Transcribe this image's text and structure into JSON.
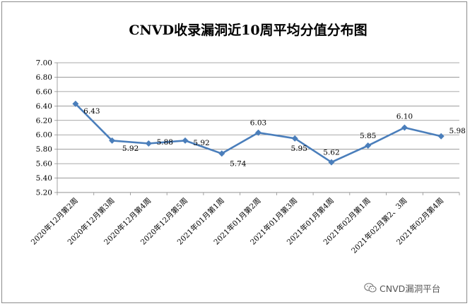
{
  "chart_data": {
    "type": "line",
    "title": "CNVD收录漏洞近10周平均分值分布图",
    "categories": [
      "2020年12月第2周",
      "2020年12月第3周",
      "2020年12月第4周",
      "2020年12月第5周",
      "2021年01月第1周",
      "2021年01月第2周",
      "2021年01月第3周",
      "2021年01月第4周",
      "2021年02月第1周",
      "2021年02月第2、3周",
      "2021年02月第4周"
    ],
    "series": [
      {
        "values": [
          6.43,
          5.92,
          5.88,
          5.92,
          5.74,
          6.03,
          5.95,
          5.62,
          5.85,
          6.1,
          5.98
        ]
      }
    ],
    "data_labels": [
      "6.43",
      "5.92",
      "5.88",
      "5.92",
      "5.74",
      "6.03",
      "5.95",
      "5.62",
      "5.85",
      "6.10",
      "5.98"
    ],
    "ylim": [
      5.2,
      7.0
    ],
    "yticks": [
      "5.20",
      "5.40",
      "5.60",
      "5.80",
      "6.00",
      "6.20",
      "6.40",
      "6.60",
      "6.80",
      "7.00"
    ],
    "grid": true,
    "legend": "none",
    "line_color": "#4a7ebb",
    "grid_color": "#8c8c8c"
  },
  "watermark": {
    "text": "CNVD漏洞平台",
    "icon": "wechat-icon"
  }
}
